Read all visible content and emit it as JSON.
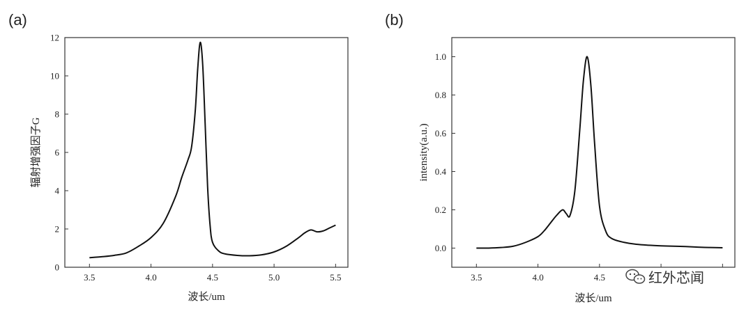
{
  "chart_data": [
    {
      "type": "line",
      "panel_label": "(a)",
      "xlabel": "波长/um",
      "ylabel": "辐射增强因子G",
      "xlim": [
        3.3,
        5.6
      ],
      "ylim": [
        0,
        12
      ],
      "xticks": [
        3.5,
        4.0,
        4.5,
        5.0,
        5.5
      ],
      "yticks": [
        0,
        2,
        4,
        6,
        8,
        10,
        12
      ],
      "xtick_labels": [
        "3.5",
        "4.0",
        "4.5",
        "5.0",
        "5.5"
      ],
      "ytick_labels": [
        "0",
        "2",
        "4",
        "6",
        "8",
        "10",
        "12"
      ],
      "series": [
        {
          "x": [
            3.5,
            3.6,
            3.7,
            3.8,
            3.9,
            4.0,
            4.1,
            4.2,
            4.25,
            4.3,
            4.33,
            4.36,
            4.38,
            4.4,
            4.42,
            4.44,
            4.46,
            4.48,
            4.5,
            4.55,
            4.6,
            4.7,
            4.8,
            4.9,
            5.0,
            5.1,
            5.2,
            5.25,
            5.3,
            5.35,
            5.4,
            5.45,
            5.5
          ],
          "y": [
            0.5,
            0.55,
            0.62,
            0.75,
            1.1,
            1.55,
            2.3,
            3.7,
            4.7,
            5.6,
            6.3,
            8.2,
            10.4,
            11.75,
            10.6,
            7.5,
            4.2,
            2.2,
            1.3,
            0.85,
            0.7,
            0.62,
            0.6,
            0.65,
            0.8,
            1.1,
            1.55,
            1.8,
            1.95,
            1.85,
            1.9,
            2.05,
            2.2
          ]
        }
      ]
    },
    {
      "type": "line",
      "panel_label": "(b)",
      "xlabel": "波长/um",
      "ylabel": "intensity(a.u.)",
      "xlim": [
        3.3,
        5.6
      ],
      "ylim": [
        -0.1,
        1.1
      ],
      "xticks": [
        3.5,
        4.0,
        4.5,
        5.0,
        5.5
      ],
      "yticks": [
        0.0,
        0.2,
        0.4,
        0.6,
        0.8,
        1.0
      ],
      "xtick_labels": [
        "3.5",
        "4.0",
        "4.5",
        "",
        ""
      ],
      "ytick_labels": [
        "0.0",
        "0.2",
        "0.4",
        "0.6",
        "0.8",
        "1.0"
      ],
      "series": [
        {
          "x": [
            3.5,
            3.6,
            3.7,
            3.8,
            3.9,
            4.0,
            4.05,
            4.1,
            4.15,
            4.2,
            4.23,
            4.26,
            4.3,
            4.34,
            4.37,
            4.4,
            4.43,
            4.46,
            4.5,
            4.55,
            4.6,
            4.7,
            4.8,
            4.9,
            5.0,
            5.1,
            5.2,
            5.3,
            5.4,
            5.5
          ],
          "y": [
            0.0,
            0.0,
            0.003,
            0.01,
            0.03,
            0.06,
            0.09,
            0.13,
            0.17,
            0.2,
            0.18,
            0.17,
            0.3,
            0.62,
            0.88,
            1.0,
            0.85,
            0.55,
            0.22,
            0.09,
            0.05,
            0.03,
            0.02,
            0.015,
            0.012,
            0.01,
            0.008,
            0.005,
            0.003,
            0.002
          ]
        }
      ]
    }
  ],
  "watermark": {
    "text": "红外芯闻",
    "icon": "wechat-icon"
  }
}
